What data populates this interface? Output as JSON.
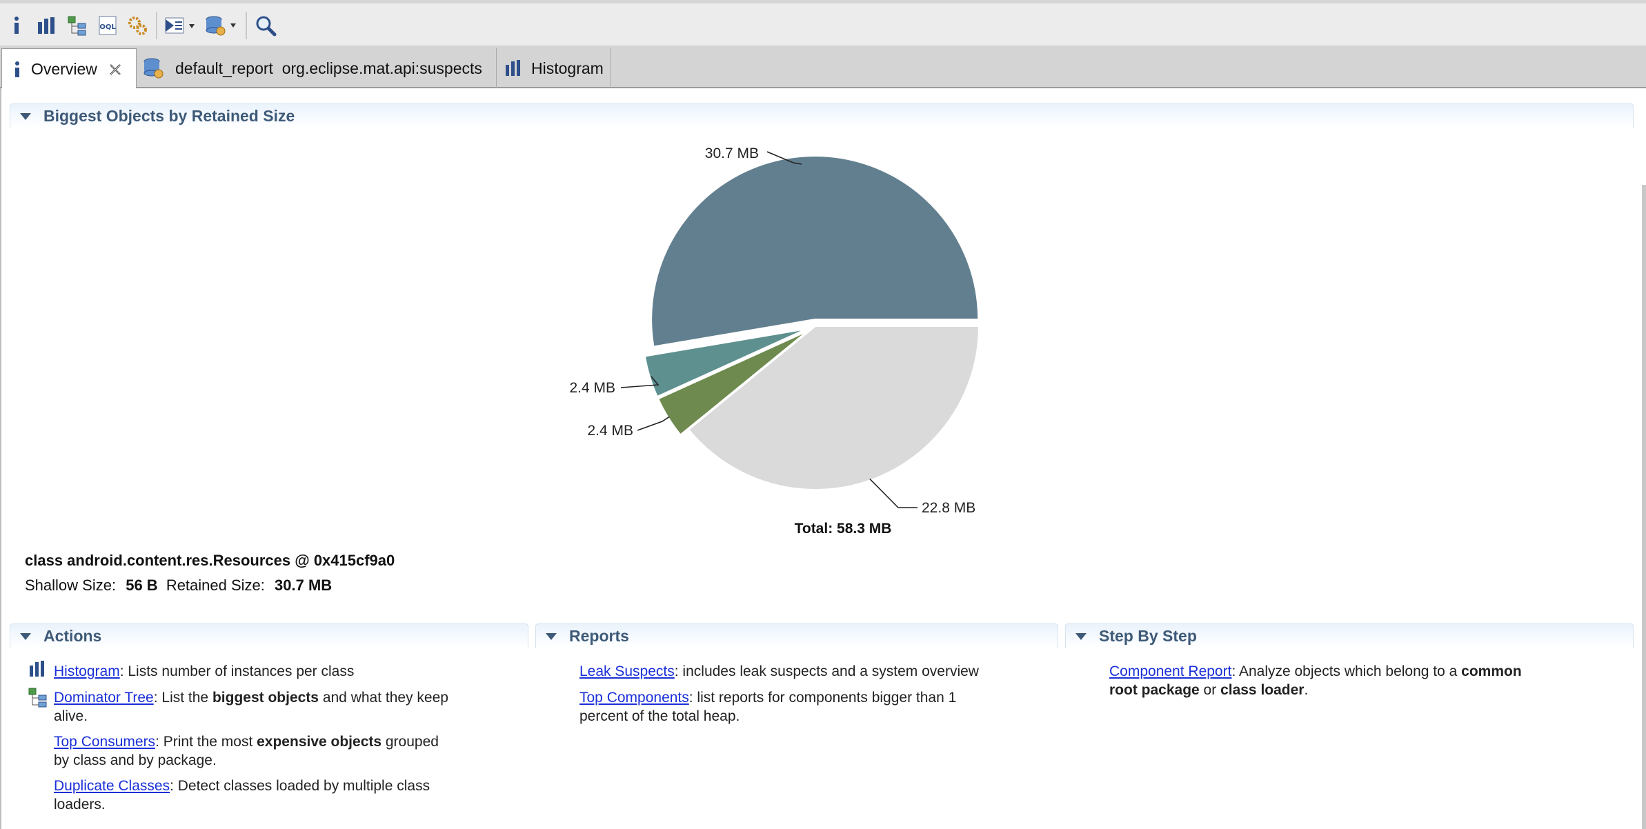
{
  "toolbar": {
    "icons": [
      "info-icon",
      "histogram-icon",
      "dominator-tree-icon",
      "oql-icon",
      "heap-dump-overview-icon",
      "run-report-dropdown-icon",
      "query-browser-dropdown-icon",
      "search-icon"
    ]
  },
  "tabs": [
    {
      "label": "Overview",
      "icon": "info-icon",
      "closable": true
    },
    {
      "label": "default_report  org.eclipse.mat.api:suspects",
      "icon": "report-icon"
    },
    {
      "label": "Histogram",
      "icon": "histogram-icon"
    }
  ],
  "biggest_objects": {
    "title": "Biggest Objects by Retained Size",
    "chart_data": {
      "type": "pie",
      "unit": "MB",
      "slices": [
        {
          "label": "30.7 MB",
          "value": 30.7,
          "color": "#627f8f"
        },
        {
          "label": "22.8 MB",
          "value": 22.8,
          "color": "#dadada"
        },
        {
          "label": "2.4 MB",
          "value": 2.4,
          "color": "#6e8a4e"
        },
        {
          "label": "2.4 MB",
          "value": 2.4,
          "color": "#5f9090"
        }
      ],
      "total_label": "Total: 58.3 MB"
    },
    "selected": {
      "title": "class android.content.res.Resources @ 0x415cf9a0",
      "shallow_label": "Shallow Size:",
      "shallow_value": "56 B",
      "retained_label": "Retained Size:",
      "retained_value": "30.7 MB"
    }
  },
  "actions": {
    "title": "Actions",
    "items": [
      {
        "link": "Histogram",
        "text": ": Lists number of instances per class",
        "icon": "histogram-icon"
      },
      {
        "link": "Dominator Tree",
        "pre": ": List the ",
        "bold": "biggest objects",
        "post": " and what they keep",
        "line2": "alive.",
        "icon": "dominator-tree-icon"
      },
      {
        "link": "Top Consumers",
        "pre": ": Print the most ",
        "bold": "expensive objects",
        "post": " grouped",
        "line2": "by class and by package."
      },
      {
        "link": "Duplicate Classes",
        "text": ": Detect classes loaded by multiple class",
        "line2": "loaders."
      }
    ]
  },
  "reports": {
    "title": "Reports",
    "items": [
      {
        "link": "Leak Suspects",
        "text": ": includes leak suspects and a system overview"
      },
      {
        "link": "Top Components",
        "text": ": list reports for components bigger than 1",
        "line2": "percent of the total heap."
      }
    ]
  },
  "step_by_step": {
    "title": "Step By Step",
    "items": [
      {
        "link": "Component Report",
        "pre": ": Analyze objects which belong to a ",
        "bold": "common",
        "bold2": "root package",
        "mid": " or ",
        "bold3": "class loader",
        "post": "."
      }
    ]
  }
}
